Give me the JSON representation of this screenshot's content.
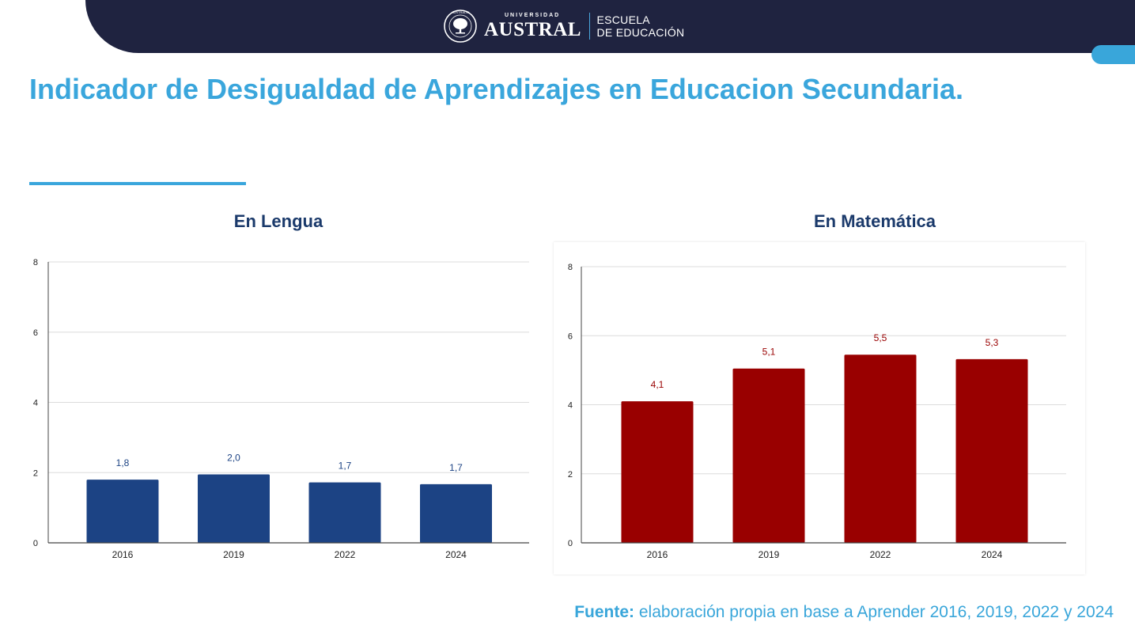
{
  "header": {
    "university_small": "UNIVERSIDAD",
    "university_name": "AUSTRAL",
    "school_line1": "ESCUELA",
    "school_line2": "DE EDUCACIÓN",
    "seal_text": "AUSTRALIS",
    "seal_icon": "tree-seal-icon"
  },
  "page_title": "Indicador de Desigualdad de Aprendizajes en Educacion Secundaria.",
  "colors": {
    "header_bg": "#1f2340",
    "accent": "#3aa6dc",
    "lengua_bar": "#1c4384",
    "lengua_label": "#1c4384",
    "matematica_bar": "#990000",
    "matematica_label": "#990000",
    "chart_title": "#1b3a6b"
  },
  "chart_data": [
    {
      "type": "bar",
      "title": "En Lengua",
      "categories": [
        "2016",
        "2019",
        "2022",
        "2024"
      ],
      "values": [
        1.8,
        1.95,
        1.72,
        1.67
      ],
      "data_labels": [
        "1,8",
        "2,0",
        "1,7",
        "1,7"
      ],
      "y_ticks": [
        "0",
        "2",
        "4",
        "6",
        "8"
      ],
      "ylim": [
        0,
        8
      ],
      "grid": true,
      "xlabel": "",
      "ylabel": ""
    },
    {
      "type": "bar",
      "title": "En Matemática",
      "categories": [
        "2016",
        "2019",
        "2022",
        "2024"
      ],
      "values": [
        4.1,
        5.05,
        5.45,
        5.32
      ],
      "data_labels": [
        "4,1",
        "5,1",
        "5,5",
        "5,3"
      ],
      "y_ticks": [
        "0",
        "2",
        "4",
        "6",
        "8"
      ],
      "ylim": [
        0,
        8
      ],
      "grid": true,
      "xlabel": "",
      "ylabel": ""
    }
  ],
  "source": {
    "label": "Fuente:",
    "text": "elaboración propia en base a Aprender 2016, 2019, 2022 y 2024"
  }
}
